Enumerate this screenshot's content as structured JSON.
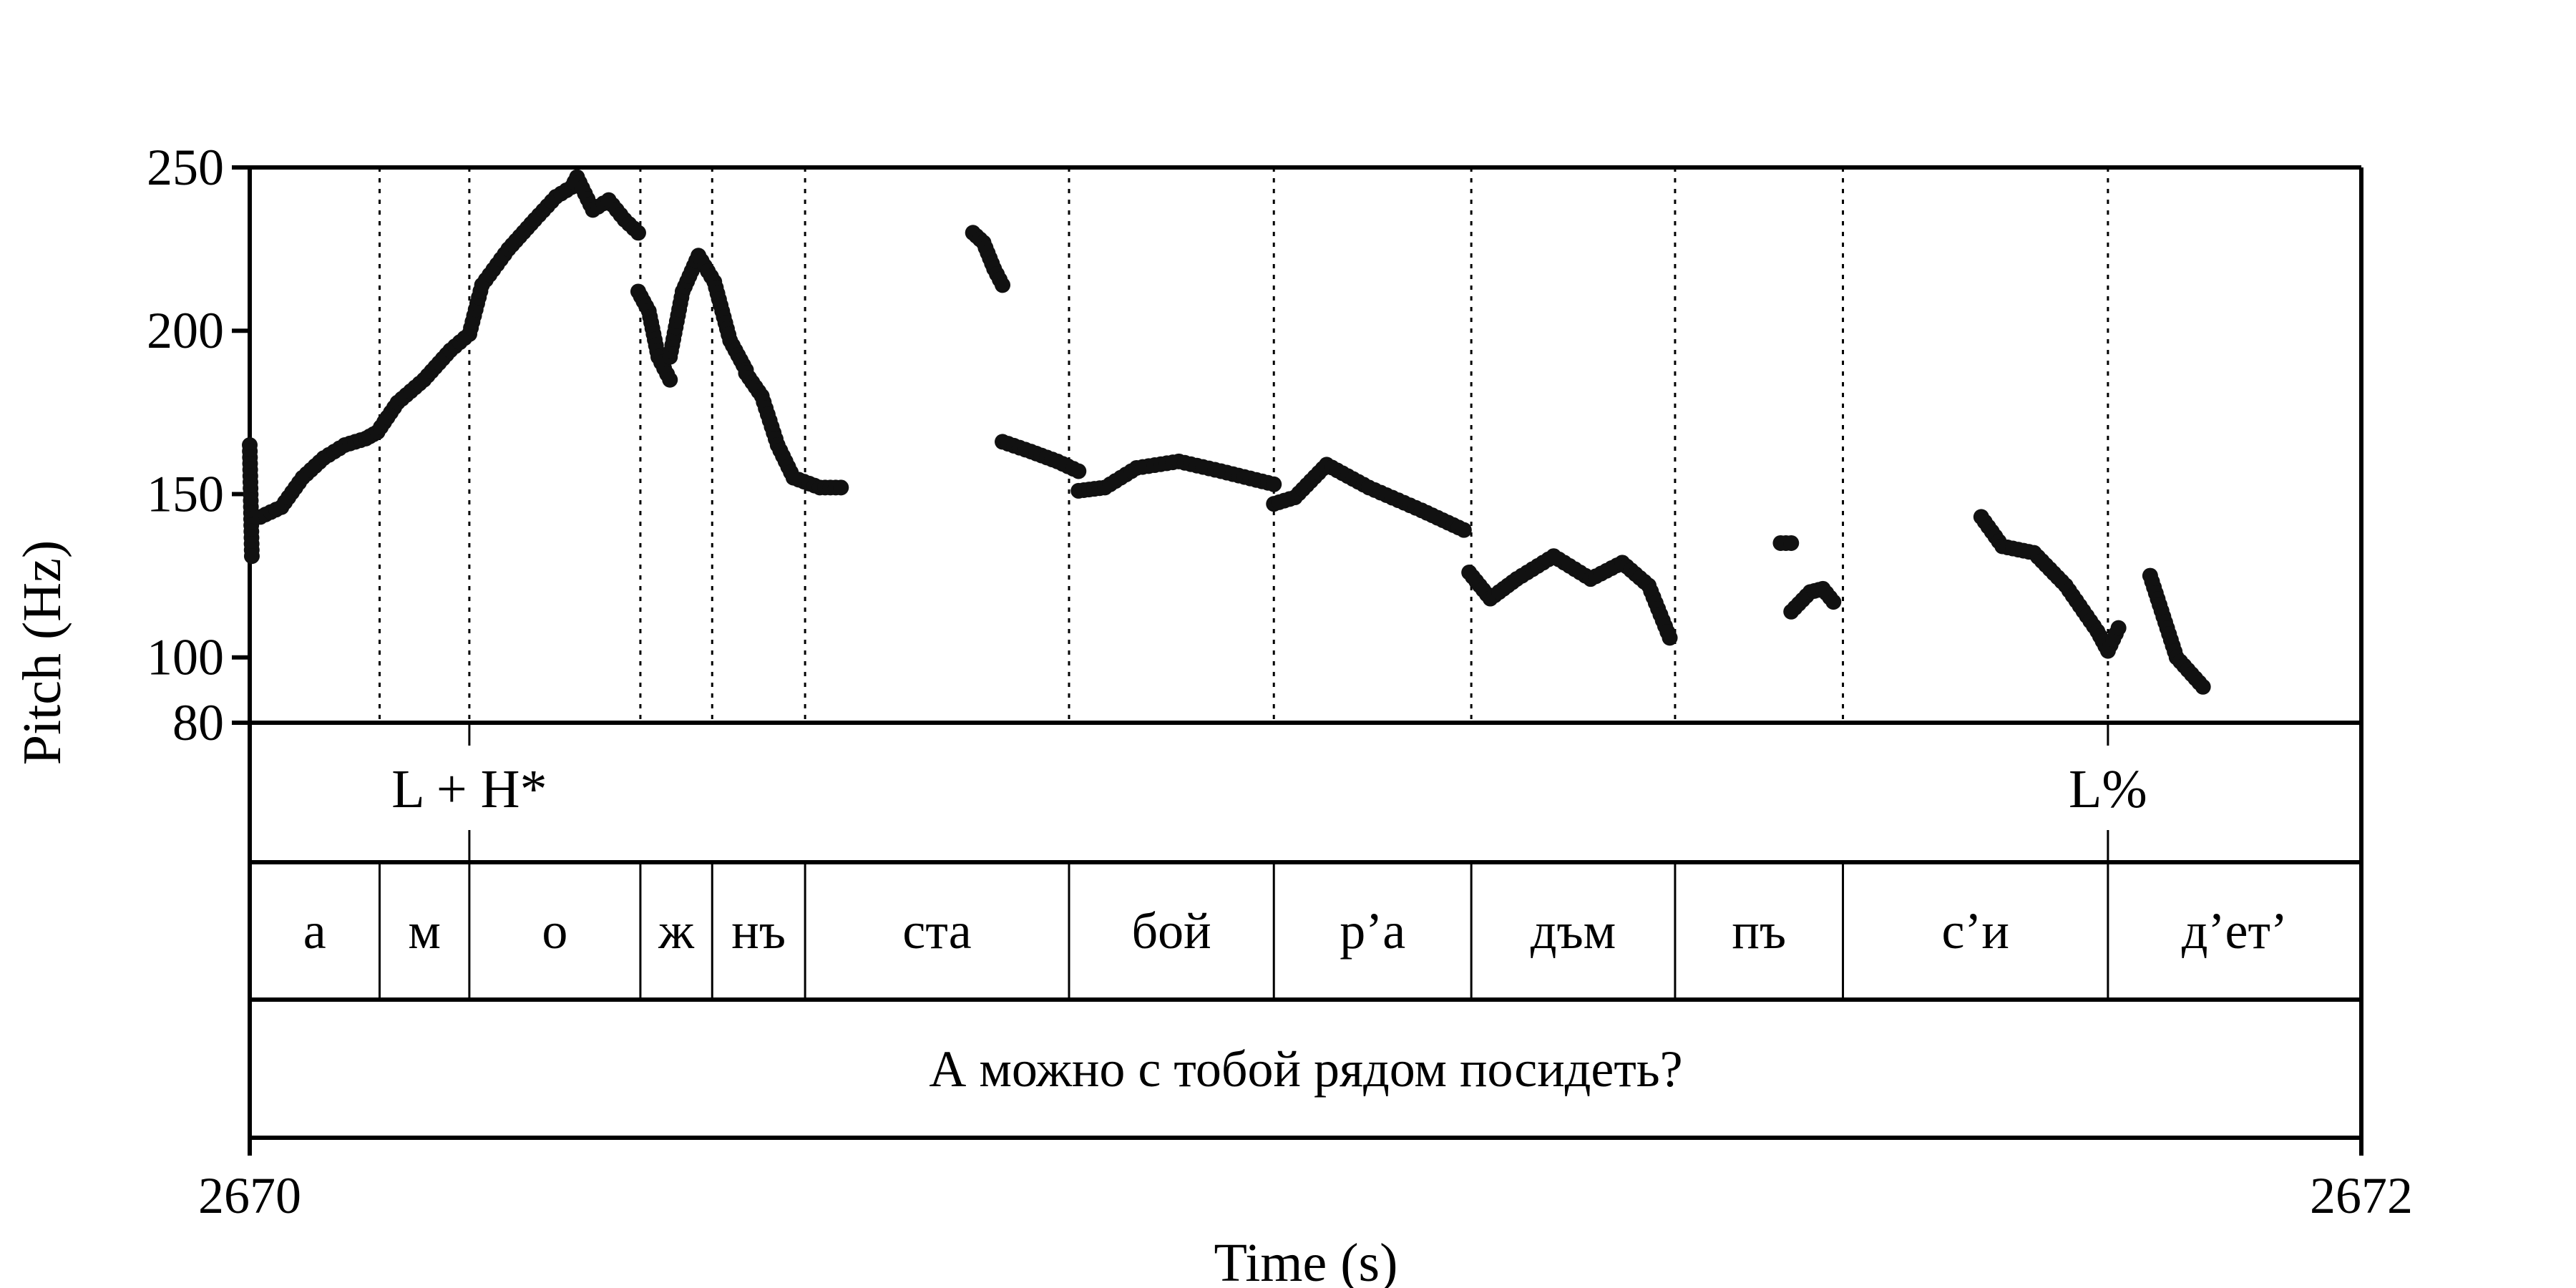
{
  "chart_data": {
    "type": "scatter",
    "title": "",
    "xlabel": "Time (s)",
    "ylabel": "Pitch (Hz)",
    "xlim": [
      2670,
      2672
    ],
    "ylim": [
      80,
      250
    ],
    "x_ticks": [
      "2670",
      "2672"
    ],
    "y_ticks": [
      "250",
      "200",
      "150",
      "100",
      "80"
    ],
    "y_tick_values": [
      250,
      200,
      150,
      100,
      80
    ],
    "grid": false,
    "segments": [
      {
        "label": "а",
        "start": 2670.0,
        "end": 2670.123
      },
      {
        "label": "м",
        "start": 2670.123,
        "end": 2670.208
      },
      {
        "label": "о",
        "start": 2670.208,
        "end": 2670.37
      },
      {
        "label": "ж",
        "start": 2670.37,
        "end": 2670.438
      },
      {
        "label": "нъ",
        "start": 2670.438,
        "end": 2670.526
      },
      {
        "label": "ста",
        "start": 2670.526,
        "end": 2670.776
      },
      {
        "label": "бой",
        "start": 2670.776,
        "end": 2670.97
      },
      {
        "label": "р’а",
        "start": 2670.97,
        "end": 2671.157
      },
      {
        "label": "дъм",
        "start": 2671.157,
        "end": 2671.35
      },
      {
        "label": "пъ",
        "start": 2671.35,
        "end": 2671.509
      },
      {
        "label": "с’и",
        "start": 2671.509,
        "end": 2671.76
      },
      {
        "label": "д’ет’",
        "start": 2671.76,
        "end": 2672.0
      }
    ],
    "tones": [
      {
        "label": "L + H*",
        "time": 2670.208
      },
      {
        "label": "L%",
        "time": 2671.76
      }
    ],
    "sentence": "А можно с тобой рядом посидеть?",
    "pitch_track": [
      {
        "start": 2670.0,
        "end": 2670.002,
        "points": [
          [
            2670.0,
            165
          ],
          [
            2670.002,
            131
          ]
        ]
      },
      {
        "start": 2670.01,
        "end": 2670.121,
        "points": [
          [
            2670.01,
            143
          ],
          [
            2670.03,
            146
          ],
          [
            2670.05,
            155
          ],
          [
            2670.07,
            161
          ],
          [
            2670.09,
            165
          ],
          [
            2670.11,
            167
          ],
          [
            2670.121,
            169
          ]
        ]
      },
      {
        "start": 2670.121,
        "end": 2670.208,
        "points": [
          [
            2670.121,
            169
          ],
          [
            2670.14,
            178
          ],
          [
            2670.165,
            185
          ],
          [
            2670.19,
            194
          ],
          [
            2670.208,
            199
          ]
        ]
      },
      {
        "start": 2670.208,
        "end": 2670.31,
        "points": [
          [
            2670.208,
            199
          ],
          [
            2670.22,
            214
          ],
          [
            2670.245,
            225
          ],
          [
            2670.27,
            234
          ],
          [
            2670.29,
            241
          ],
          [
            2670.305,
            244
          ],
          [
            2670.31,
            247
          ]
        ]
      },
      {
        "start": 2670.31,
        "end": 2670.368,
        "points": [
          [
            2670.31,
            247
          ],
          [
            2670.325,
            237
          ],
          [
            2670.34,
            240
          ],
          [
            2670.355,
            234
          ],
          [
            2670.368,
            230
          ]
        ]
      },
      {
        "start": 2670.368,
        "end": 2670.398,
        "points": [
          [
            2670.368,
            212
          ],
          [
            2670.378,
            206
          ],
          [
            2670.387,
            192
          ],
          [
            2670.398,
            185
          ]
        ]
      },
      {
        "start": 2670.398,
        "end": 2670.47,
        "points": [
          [
            2670.398,
            192
          ],
          [
            2670.41,
            212
          ],
          [
            2670.425,
            223
          ],
          [
            2670.44,
            215
          ],
          [
            2670.455,
            197
          ],
          [
            2670.47,
            188
          ]
        ]
      },
      {
        "start": 2670.47,
        "end": 2670.56,
        "points": [
          [
            2670.47,
            187
          ],
          [
            2670.485,
            180
          ],
          [
            2670.5,
            165
          ],
          [
            2670.515,
            155
          ],
          [
            2670.54,
            152
          ],
          [
            2670.56,
            152
          ]
        ]
      },
      {
        "start": 2670.685,
        "end": 2670.713,
        "points": [
          [
            2670.685,
            230
          ],
          [
            2670.695,
            227
          ],
          [
            2670.705,
            219
          ],
          [
            2670.713,
            214
          ]
        ]
      },
      {
        "start": 2670.713,
        "end": 2670.785,
        "points": [
          [
            2670.713,
            166
          ],
          [
            2670.74,
            163
          ],
          [
            2670.765,
            160
          ],
          [
            2670.785,
            157
          ]
        ]
      },
      {
        "start": 2670.785,
        "end": 2670.97,
        "points": [
          [
            2670.785,
            151
          ],
          [
            2670.81,
            152
          ],
          [
            2670.84,
            158
          ],
          [
            2670.88,
            160
          ],
          [
            2670.92,
            157
          ],
          [
            2670.97,
            153
          ]
        ]
      },
      {
        "start": 2670.97,
        "end": 2671.15,
        "points": [
          [
            2670.97,
            147
          ],
          [
            2670.99,
            149
          ],
          [
            2671.02,
            159
          ],
          [
            2671.06,
            152
          ],
          [
            2671.11,
            145
          ],
          [
            2671.15,
            139
          ]
        ]
      },
      {
        "start": 2671.155,
        "end": 2671.345,
        "points": [
          [
            2671.155,
            126
          ],
          [
            2671.175,
            118
          ],
          [
            2671.2,
            124
          ],
          [
            2671.235,
            131
          ],
          [
            2671.27,
            124
          ],
          [
            2671.3,
            129
          ],
          [
            2671.325,
            122
          ],
          [
            2671.345,
            106
          ]
        ]
      },
      {
        "start": 2671.45,
        "end": 2671.46,
        "points": [
          [
            2671.45,
            135
          ],
          [
            2671.46,
            135
          ]
        ]
      },
      {
        "start": 2671.46,
        "end": 2671.5,
        "points": [
          [
            2671.46,
            114
          ],
          [
            2671.478,
            120
          ],
          [
            2671.49,
            121
          ],
          [
            2671.5,
            117
          ]
        ]
      },
      {
        "start": 2671.64,
        "end": 2671.77,
        "points": [
          [
            2671.64,
            143
          ],
          [
            2671.66,
            134
          ],
          [
            2671.69,
            132
          ],
          [
            2671.72,
            122
          ],
          [
            2671.75,
            108
          ],
          [
            2671.76,
            102
          ],
          [
            2671.77,
            109
          ]
        ]
      },
      {
        "start": 2671.8,
        "end": 2671.85,
        "points": [
          [
            2671.8,
            125
          ],
          [
            2671.825,
            100
          ],
          [
            2671.85,
            91
          ]
        ]
      }
    ]
  }
}
